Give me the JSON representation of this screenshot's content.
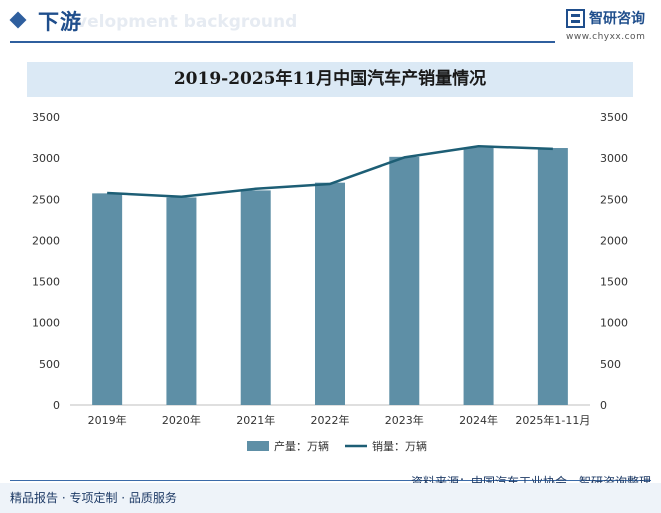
{
  "header": {
    "title": "下游",
    "bg_text": "velopment background",
    "brand_name": "智研咨询",
    "brand_url": "www.chyxx.com"
  },
  "footer": {
    "left_text": "精品报告 · 专项定制 · 品质服务",
    "source": "资料来源：中国汽车工业协会、智研咨询整理"
  },
  "colors": {
    "bar": "#5e8fa6",
    "line": "#1d5e75",
    "accent": "#1f4e8c"
  },
  "chart_data": {
    "type": "bar",
    "title": "2019-2025年11月中国汽车产销量情况",
    "categories": [
      "2019年",
      "2020年",
      "2021年",
      "2022年",
      "2023年",
      "2024年",
      "2025年1-11月"
    ],
    "series": [
      {
        "name": "产量：万辆",
        "type": "bar",
        "axis": "left",
        "values": [
          2572,
          2522,
          2608,
          2702,
          3016,
          3128,
          3123
        ]
      },
      {
        "name": "销量：万辆",
        "type": "line",
        "axis": "right",
        "values": [
          2577,
          2531,
          2628,
          2686,
          3009,
          3144,
          3113
        ]
      }
    ],
    "ylim": [
      0,
      3500
    ],
    "y_ticks": [
      0,
      500,
      1000,
      1500,
      2000,
      2500,
      3000,
      3500
    ],
    "y2lim": [
      0,
      3500
    ],
    "y2_ticks": [
      0,
      500,
      1000,
      1500,
      2000,
      2500,
      3000,
      3500
    ],
    "grid": false,
    "legend": "bottom"
  }
}
